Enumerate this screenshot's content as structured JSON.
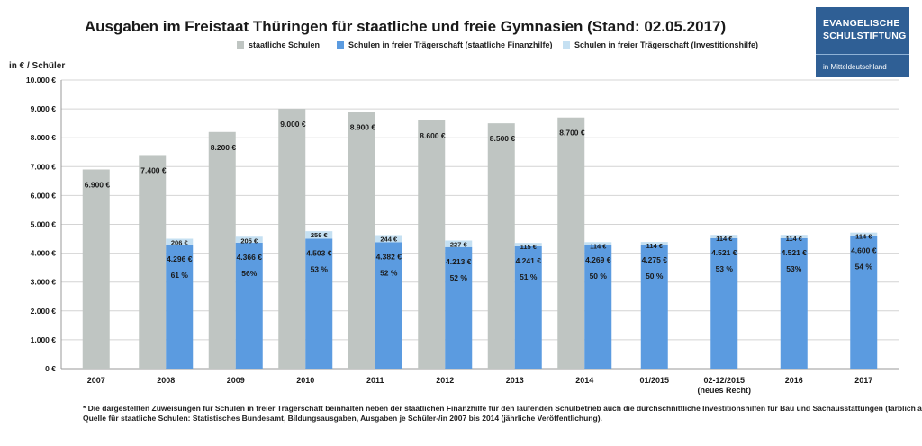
{
  "header": {
    "title": "Ausgaben im Freistaat Thüringen für staatliche und freie Gymnasien (Stand: 02.05.2017)"
  },
  "logo": {
    "line1": "EVANGELISCHE",
    "line2": "SCHULSTIFTUNG",
    "line3": "in Mitteldeutschland",
    "bg_color": "#2f5f95"
  },
  "footnote": {
    "line1": "* Die dargestellten Zuweisungen für Schulen in freier Trägerschaft beinhalten neben der staatlichen Finanzhilfe für den laufenden Schulbetrieb auch die durchschnittliche Investitionshilfen für Bau und Sachausstattungen (farblich abgesetzt).",
    "line2": "Quelle für staatliche Schulen: Statistisches Bundesamt, Bildungsausgaben, Ausgaben je Schüler-/in 2007 bis 2014 (jährliche Veröffentlichung)."
  },
  "chart_data": {
    "type": "bar",
    "title": "Ausgaben im Freistaat Thüringen für staatliche und freie Gymnasien (Stand: 02.05.2017)",
    "ylabel": "in € / Schüler",
    "ylim": [
      0,
      10000
    ],
    "yticks": [
      0,
      1000,
      2000,
      3000,
      4000,
      5000,
      6000,
      7000,
      8000,
      9000,
      10000
    ],
    "ytick_labels": [
      "0 €",
      "1.000 €",
      "2.000 €",
      "3.000 €",
      "4.000 €",
      "5.000 €",
      "6.000 €",
      "7.000 €",
      "8.000 €",
      "9.000 €",
      "10.000 €"
    ],
    "grid": true,
    "legend": "top",
    "categories": [
      "2007",
      "2008",
      "2009",
      "2010",
      "2011",
      "2012",
      "2013",
      "2014",
      "01/2015",
      "02-12/2015\n(neues Recht)",
      "2016",
      "2017"
    ],
    "series": [
      {
        "name": "staatliche Schulen",
        "color": "#bfc5c2",
        "values": [
          6900,
          7400,
          8200,
          9000,
          8900,
          8600,
          8500,
          8700,
          null,
          null,
          null,
          null
        ],
        "labels": [
          "6.900 €",
          "7.400 €",
          "8.200 €",
          "9.000 €",
          "8.900 €",
          "8.600 €",
          "8.500 €",
          "8.700 €",
          "",
          "",
          "",
          ""
        ]
      },
      {
        "name": "Schulen in freier Trägerschaft (staatliche Finanzhilfe)",
        "color": "#5b9be0",
        "values": [
          null,
          4296,
          4366,
          4503,
          4382,
          4213,
          4241,
          4269,
          4275,
          4521,
          4521,
          4600
        ],
        "labels": [
          "",
          "4.296 €",
          "4.366 €",
          "4.503 €",
          "4.382 €",
          "4.213 €",
          "4.241 €",
          "4.269 €",
          "4.275 €",
          "4.521 €",
          "4.521 €",
          "4.600 €"
        ],
        "percent_labels": [
          "",
          "61 %",
          "56%",
          "53 %",
          "52 %",
          "52 %",
          "51 %",
          "50 %",
          "50 %",
          "53 %",
          "53%",
          "54 %"
        ]
      },
      {
        "name": "Schulen in freier Trägerschaft (Investitionshilfe)",
        "color": "#c5e0f2",
        "values": [
          null,
          206,
          205,
          259,
          244,
          227,
          115,
          114,
          114,
          114,
          114,
          114
        ],
        "labels": [
          "",
          "206 €",
          "205 €",
          "259 €",
          "244 €",
          "227 €",
          "115 €",
          "114 €",
          "114 €",
          "114 €",
          "114 €",
          "114 €"
        ]
      }
    ]
  }
}
